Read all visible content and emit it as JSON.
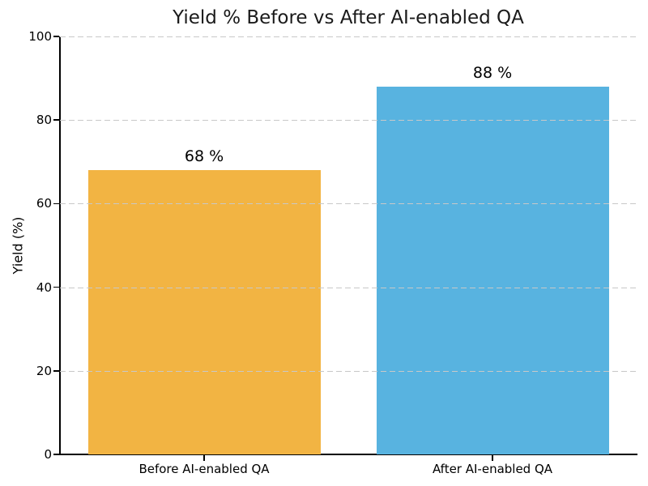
{
  "chart_data": {
    "type": "bar",
    "title": "Yield % Before vs After AI-enabled QA",
    "xlabel": "",
    "ylabel": "Yield (%)",
    "categories": [
      "Before AI-enabled QA",
      "After AI-enabled QA"
    ],
    "values": [
      68,
      88
    ],
    "value_labels": [
      "68 %",
      "88 %"
    ],
    "bar_colors": [
      "#F2B443",
      "#58B3E0"
    ],
    "ylim": [
      0,
      100
    ],
    "yticks": [
      0,
      20,
      40,
      60,
      80,
      100
    ],
    "grid": "horizontal-dashed",
    "gridline_color": "#c8c8c8",
    "legend": "none"
  }
}
